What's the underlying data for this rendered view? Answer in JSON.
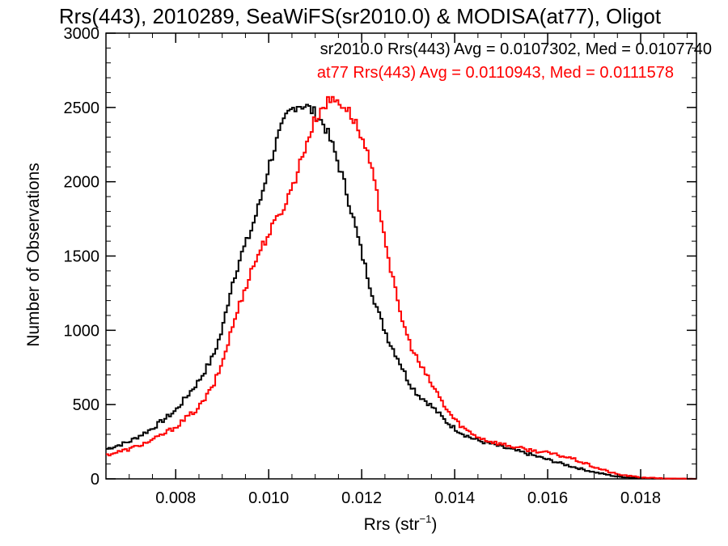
{
  "chart_data": {
    "type": "line",
    "title": "Rrs(443), 2010289, SeaWiFS(sr2010.0) & MODISA(at77), Oligot",
    "xlabel_main": "Rrs (str",
    "xlabel_sup": "−1",
    "xlabel_close": ")",
    "ylabel": "Number of Observations",
    "xlim": [
      0.0065,
      0.0192
    ],
    "ylim": [
      0,
      3000
    ],
    "x_ticks": [
      0.008,
      0.01,
      0.012,
      0.014,
      0.016,
      0.018
    ],
    "x_tick_labels": [
      "0.008",
      "0.010",
      "0.012",
      "0.014",
      "0.016",
      "0.018"
    ],
    "y_ticks": [
      0,
      500,
      1000,
      1500,
      2000,
      2500,
      3000
    ],
    "y_tick_labels": [
      "0",
      "500",
      "1000",
      "1500",
      "2000",
      "2500",
      "3000"
    ],
    "x_minor_step": 0.0005,
    "y_minor_step": 100,
    "bin_width": 5e-05,
    "grid": false,
    "series": [
      {
        "name": "sr2010.0",
        "color": "#000000",
        "legend": "sr2010.0 Rrs(443) Avg = 0.0107302, Med = 0.0107740",
        "points": [
          [
            0.0065,
            200
          ],
          [
            0.007,
            250
          ],
          [
            0.0075,
            340
          ],
          [
            0.008,
            460
          ],
          [
            0.0085,
            660
          ],
          [
            0.0088,
            820
          ],
          [
            0.009,
            1000
          ],
          [
            0.0092,
            1300
          ],
          [
            0.0094,
            1500
          ],
          [
            0.0096,
            1650
          ],
          [
            0.0098,
            1850
          ],
          [
            0.01,
            2100
          ],
          [
            0.0102,
            2300
          ],
          [
            0.0104,
            2450
          ],
          [
            0.0106,
            2520
          ],
          [
            0.0108,
            2510
          ],
          [
            0.011,
            2460
          ],
          [
            0.0112,
            2380
          ],
          [
            0.0114,
            2220
          ],
          [
            0.0116,
            2020
          ],
          [
            0.0118,
            1780
          ],
          [
            0.012,
            1520
          ],
          [
            0.0122,
            1280
          ],
          [
            0.0124,
            1080
          ],
          [
            0.0126,
            920
          ],
          [
            0.0128,
            800
          ],
          [
            0.013,
            660
          ],
          [
            0.0132,
            570
          ],
          [
            0.0134,
            520
          ],
          [
            0.0136,
            460
          ],
          [
            0.0138,
            390
          ],
          [
            0.014,
            340
          ],
          [
            0.0142,
            300
          ],
          [
            0.0144,
            270
          ],
          [
            0.0146,
            250
          ],
          [
            0.0148,
            235
          ],
          [
            0.015,
            215
          ],
          [
            0.0155,
            175
          ],
          [
            0.016,
            130
          ],
          [
            0.0165,
            85
          ],
          [
            0.017,
            45
          ],
          [
            0.0175,
            15
          ],
          [
            0.018,
            5
          ],
          [
            0.0185,
            2
          ],
          [
            0.0192,
            0
          ]
        ]
      },
      {
        "name": "at77",
        "color": "#ff0000",
        "legend": "at77 Rrs(443) Avg = 0.0110943, Med = 0.0111578",
        "points": [
          [
            0.0065,
            160
          ],
          [
            0.007,
            200
          ],
          [
            0.0075,
            260
          ],
          [
            0.008,
            350
          ],
          [
            0.0085,
            480
          ],
          [
            0.0088,
            620
          ],
          [
            0.009,
            780
          ],
          [
            0.0092,
            1000
          ],
          [
            0.0094,
            1200
          ],
          [
            0.0096,
            1380
          ],
          [
            0.0098,
            1530
          ],
          [
            0.01,
            1650
          ],
          [
            0.0102,
            1760
          ],
          [
            0.0104,
            1880
          ],
          [
            0.0106,
            2050
          ],
          [
            0.0108,
            2250
          ],
          [
            0.011,
            2420
          ],
          [
            0.0112,
            2520
          ],
          [
            0.0114,
            2560
          ],
          [
            0.0116,
            2520
          ],
          [
            0.0118,
            2440
          ],
          [
            0.012,
            2300
          ],
          [
            0.0122,
            2100
          ],
          [
            0.0124,
            1800
          ],
          [
            0.0126,
            1450
          ],
          [
            0.0128,
            1150
          ],
          [
            0.013,
            940
          ],
          [
            0.0132,
            800
          ],
          [
            0.0134,
            690
          ],
          [
            0.0136,
            590
          ],
          [
            0.0138,
            480
          ],
          [
            0.014,
            400
          ],
          [
            0.0142,
            340
          ],
          [
            0.0144,
            300
          ],
          [
            0.0146,
            270
          ],
          [
            0.0148,
            250
          ],
          [
            0.015,
            235
          ],
          [
            0.0155,
            200
          ],
          [
            0.016,
            175
          ],
          [
            0.0165,
            140
          ],
          [
            0.017,
            80
          ],
          [
            0.0175,
            30
          ],
          [
            0.018,
            10
          ],
          [
            0.0185,
            3
          ],
          [
            0.0192,
            0
          ]
        ]
      }
    ]
  }
}
